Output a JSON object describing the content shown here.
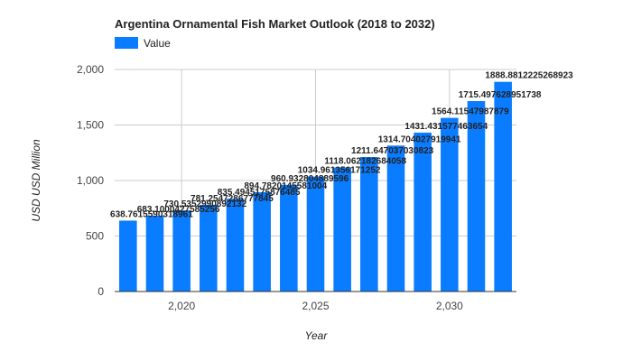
{
  "chart_data": {
    "type": "bar",
    "title": "Argentina Ornamental Fish Market Outlook (2018 to 2032)",
    "xlabel": "Year",
    "ylabel": "USD USD Million",
    "legend": {
      "entries": [
        "Value"
      ],
      "position": "top-left"
    },
    "colors": {
      "bar": "#0a7cff"
    },
    "ylim": [
      0,
      2000
    ],
    "y_ticks": [
      0,
      500,
      1000,
      1500,
      2000
    ],
    "y_tick_labels": [
      "0",
      "500",
      "1,000",
      "1,500",
      "2,000"
    ],
    "x_ticks": [
      2020,
      2025,
      2030
    ],
    "x_tick_labels": [
      "2,020",
      "2,025",
      "2,030"
    ],
    "grid": true,
    "series": [
      {
        "name": "Value",
        "x": [
          2018,
          2019,
          2020,
          2021,
          2022,
          2023,
          2024,
          2025,
          2026,
          2027,
          2028,
          2029,
          2030,
          2031,
          2032
        ],
        "values": [
          638.7615590318961,
          683.1000427585255,
          730.5352990892133,
          781.2547286777846,
          835.4945175876485,
          894.7820145581004,
          960.932804889596,
          1034.961356171252,
          1118.062182684058,
          1211.647037030823,
          1314.704027919941,
          1431.431577463654,
          1564.11547987879,
          1715.497628951738,
          1888.881222526892
        ],
        "labels": [
          "638.7615590318961",
          "683.1000427585256",
          "730.5352990892132",
          "781.2547286777845",
          "835.4945175876485",
          "894.7820145581004",
          "960.932804889596",
          "1034.961356171252",
          "1118.062182684058",
          "1211.647037030823",
          "1314.704027919941",
          "1431.431577463654",
          "1564.11547987879",
          "1715.497628951738",
          "1888.8812225268923"
        ]
      }
    ]
  }
}
